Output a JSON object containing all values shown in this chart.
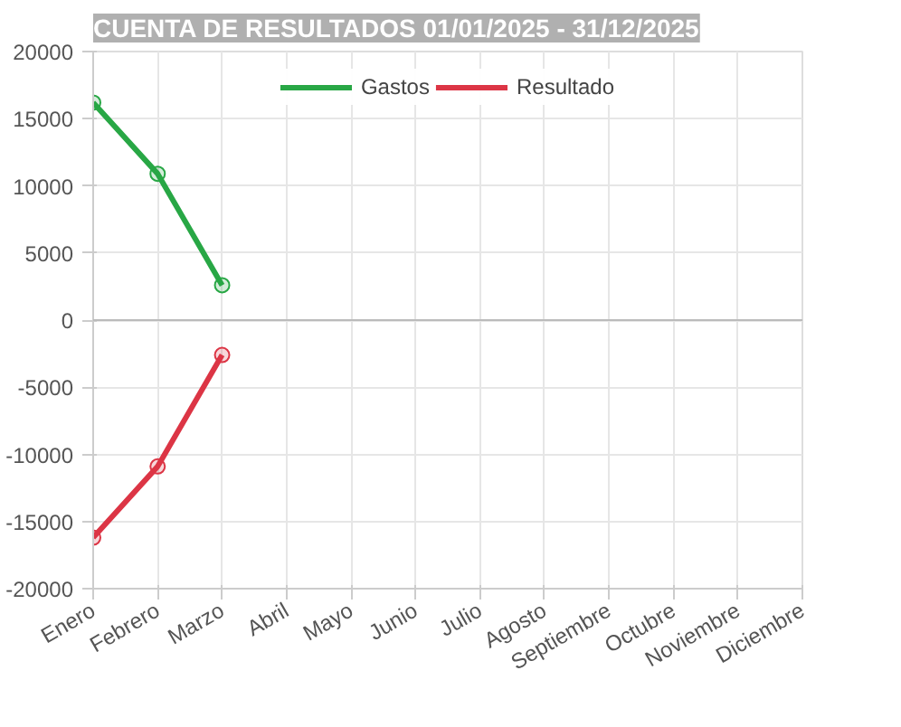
{
  "chart_data": {
    "type": "line",
    "title": "CUENTA DE RESULTADOS 01/01/2025 - 31/12/2025",
    "categories": [
      "Enero",
      "Febrero",
      "Marzo",
      "Abril",
      "Mayo",
      "Junio",
      "Julio",
      "Agosto",
      "Septiembre",
      "Octubre",
      "Noviembre",
      "Diciembre"
    ],
    "series": [
      {
        "name": "Gastos",
        "color": "#28a745",
        "values": [
          16200,
          10900,
          2600,
          null,
          null,
          null,
          null,
          null,
          null,
          null,
          null,
          null
        ]
      },
      {
        "name": "Resultado",
        "color": "#dc3545",
        "values": [
          -16200,
          -10900,
          -2600,
          null,
          null,
          null,
          null,
          null,
          null,
          null,
          null,
          null
        ]
      }
    ],
    "ylim": [
      -20000,
      20000
    ],
    "yticks": [
      -20000,
      -15000,
      -10000,
      -5000,
      0,
      5000,
      10000,
      15000,
      20000
    ],
    "grid": true,
    "legend": "top",
    "marker": "circle",
    "line_style": "solid"
  }
}
